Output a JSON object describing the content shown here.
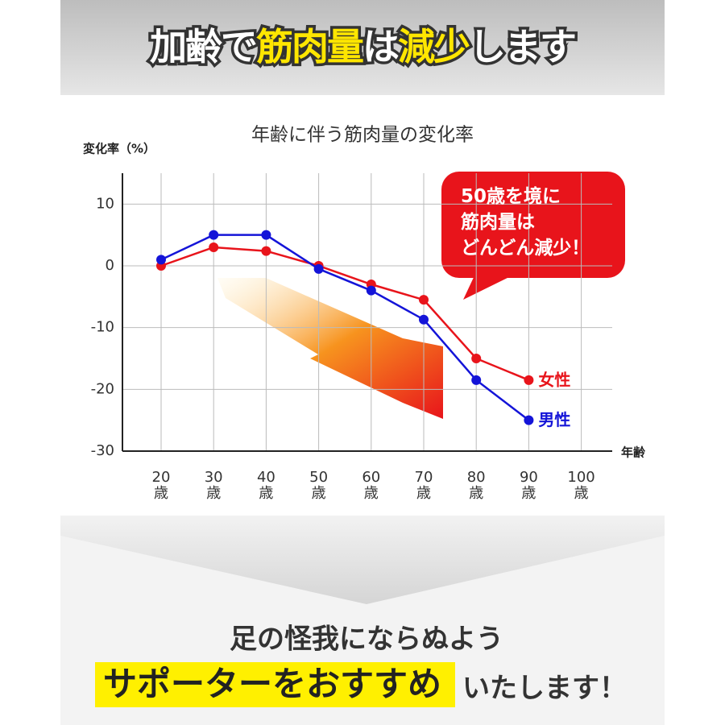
{
  "header": {
    "title_segments": [
      "加齢で",
      "筋肉量",
      "は",
      "減少",
      "します"
    ]
  },
  "chart_data": {
    "type": "line",
    "title": "年齢に伴う筋肉量の変化率",
    "y_label": "変化率（%）",
    "x_label": "年齢",
    "categories": [
      "20\n歳",
      "30\n歳",
      "40\n歳",
      "50\n歳",
      "60\n歳",
      "70\n歳",
      "80\n歳",
      "90\n歳",
      "100\n歳"
    ],
    "series": [
      {
        "name": "女性",
        "color": "#e8141b",
        "values": [
          0,
          3,
          2.4,
          0,
          -3,
          -5.5,
          -15,
          -18.5,
          null
        ]
      },
      {
        "name": "男性",
        "color": "#1414d8",
        "values": [
          1,
          5,
          5,
          -0.5,
          -4,
          -8.7,
          -18.5,
          -25,
          null
        ]
      }
    ],
    "ylim": [
      -30,
      15
    ],
    "yticks": [
      10,
      0,
      -10,
      -20,
      -30
    ],
    "grid": true,
    "annotation": "50歳を境に\n筋肉量は\nどんどん減少！"
  },
  "footer": {
    "line1": "足の怪我にならぬよう",
    "highlight": "サポーターをおすすめ",
    "rest": "いたします！"
  }
}
